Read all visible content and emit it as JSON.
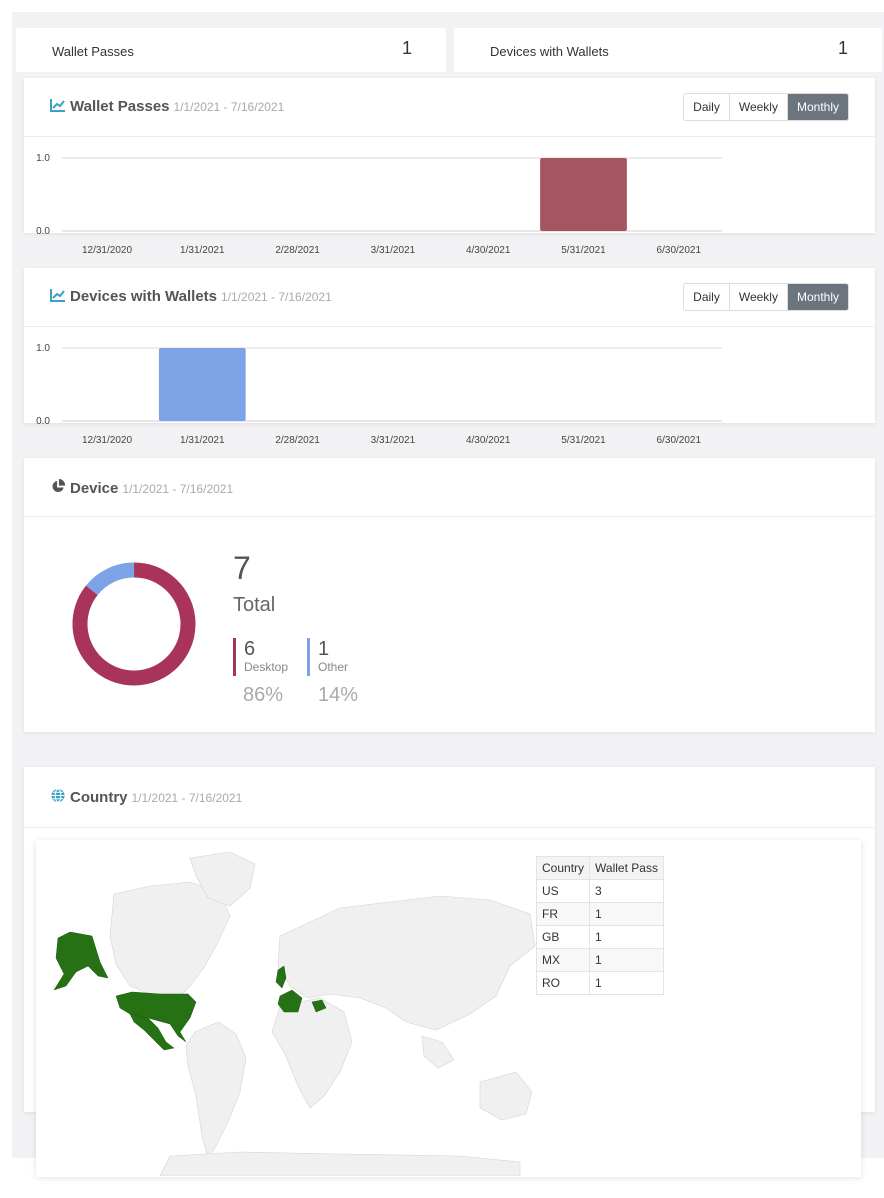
{
  "stats": {
    "wallet_passes": {
      "label": "Wallet Passes",
      "value": "1"
    },
    "devices_with_wallets": {
      "label": "Devices with Wallets",
      "value": "1"
    }
  },
  "period_buttons": {
    "daily": "Daily",
    "weekly": "Weekly",
    "monthly": "Monthly",
    "selected": "Monthly"
  },
  "panels": {
    "wallet_passes": {
      "title": "Wallet Passes",
      "range": "1/1/2021 - 7/16/2021"
    },
    "devices_with_wallets": {
      "title": "Devices with Wallets",
      "range": "1/1/2021 - 7/16/2021"
    },
    "device": {
      "title": "Device",
      "range": "1/1/2021 - 7/16/2021"
    },
    "country": {
      "title": "Country",
      "range": "1/1/2021 - 7/16/2021"
    }
  },
  "chart_data": [
    {
      "type": "bar",
      "categories": [
        "12/31/2020",
        "1/31/2021",
        "2/28/2021",
        "3/31/2021",
        "4/30/2021",
        "5/31/2021",
        "6/30/2021"
      ],
      "values": [
        0,
        0,
        0,
        0,
        0,
        1,
        0
      ],
      "color": "#a55460",
      "ylim": [
        0,
        1
      ],
      "yticks": [
        "1.0",
        "0.0"
      ],
      "grid": true
    },
    {
      "type": "bar",
      "categories": [
        "12/31/2020",
        "1/31/2021",
        "2/28/2021",
        "3/31/2021",
        "4/30/2021",
        "5/31/2021",
        "6/30/2021"
      ],
      "values": [
        0,
        1,
        0,
        0,
        0,
        0,
        0
      ],
      "color": "#7ba3e6",
      "ylim": [
        0,
        1
      ],
      "yticks": [
        "1.0",
        "0.0"
      ],
      "grid": true
    },
    {
      "type": "pie",
      "slices": [
        {
          "name": "Desktop",
          "value": 6,
          "percent": "86%",
          "color": "#a83459"
        },
        {
          "name": "Other",
          "value": 1,
          "percent": "14%",
          "color": "#7ba3e6"
        }
      ],
      "total": "7",
      "total_label": "Total"
    },
    {
      "type": "table",
      "columns": [
        "Country",
        "Wallet Pass"
      ],
      "rows": [
        [
          "US",
          "3"
        ],
        [
          "FR",
          "1"
        ],
        [
          "GB",
          "1"
        ],
        [
          "MX",
          "1"
        ],
        [
          "RO",
          "1"
        ]
      ],
      "highlight_color": "#267114"
    }
  ]
}
